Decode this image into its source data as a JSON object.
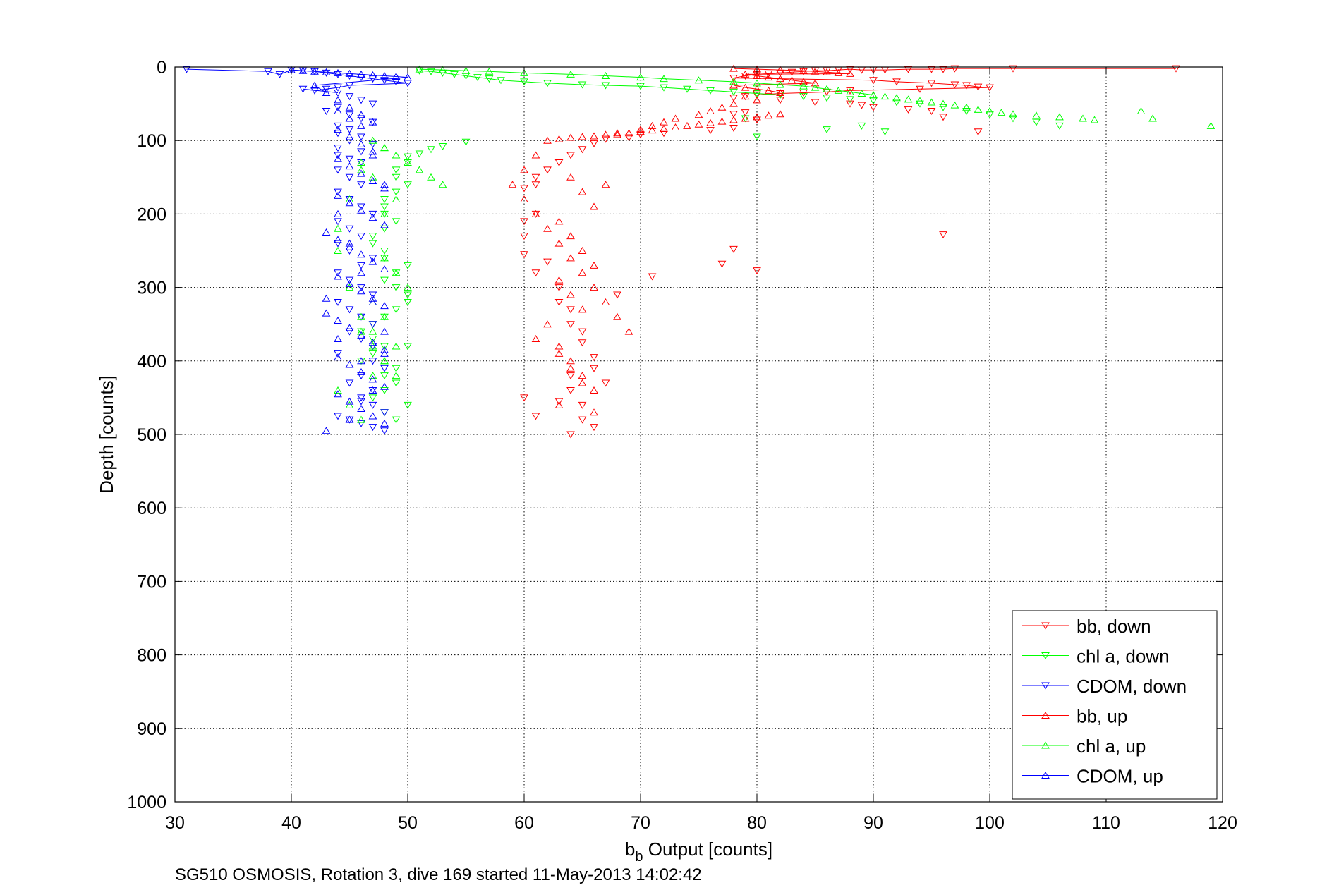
{
  "chart_data": {
    "type": "scatter",
    "xlabel_main": "b",
    "xlabel_sub": "b",
    "xlabel_rest": " Output [counts]",
    "ylabel": "Depth [counts]",
    "caption": "SG510 OSMOSIS, Rotation 3, dive 169 started 11-May-2013 14:02:42",
    "xlim": [
      30,
      120
    ],
    "ylim": [
      0,
      1000
    ],
    "y_reversed": true,
    "grid": true,
    "legend_position": "lower-right",
    "xticks": [
      30,
      40,
      50,
      60,
      70,
      80,
      90,
      100,
      110,
      120
    ],
    "yticks": [
      0,
      100,
      200,
      300,
      400,
      500,
      600,
      700,
      800,
      900,
      1000
    ],
    "series": [
      {
        "name": "bb, down",
        "color": "#ff0000",
        "marker": "triangle-down",
        "x": [
          116,
          102,
          97,
          96,
          95,
          93,
          91,
          90,
          89,
          88,
          87,
          86,
          85,
          84,
          83,
          82,
          81,
          80,
          79,
          78,
          90,
          92,
          95,
          97,
          98,
          99,
          100,
          94,
          88,
          86,
          84,
          82,
          80,
          79,
          78,
          82,
          85,
          88,
          89,
          90,
          93,
          95,
          96,
          99,
          78,
          79,
          80,
          78,
          76,
          72,
          70,
          71,
          69,
          67,
          66,
          65,
          64,
          63,
          62,
          61,
          61,
          60,
          61,
          60,
          60,
          60,
          62,
          61,
          63,
          63,
          64,
          64,
          65,
          65,
          66,
          66,
          67,
          64,
          63,
          61,
          60,
          65,
          66,
          64,
          65,
          64,
          78,
          77,
          80,
          96,
          68
        ],
        "y": [
          2,
          2,
          2,
          3,
          3,
          3,
          4,
          4,
          4,
          3,
          4,
          5,
          5,
          6,
          7,
          8,
          9,
          10,
          12,
          15,
          18,
          20,
          22,
          24,
          25,
          27,
          28,
          30,
          32,
          34,
          35,
          36,
          38,
          40,
          42,
          45,
          48,
          50,
          52,
          55,
          58,
          60,
          68,
          88,
          64,
          62,
          72,
          83,
          86,
          90,
          92,
          285,
          96,
          98,
          104,
          112,
          120,
          130,
          140,
          150,
          160,
          165,
          200,
          210,
          230,
          255,
          265,
          280,
          300,
          320,
          330,
          350,
          360,
          375,
          395,
          410,
          430,
          440,
          455,
          475,
          450,
          480,
          490,
          500,
          460,
          420,
          248,
          268,
          277,
          228,
          310
        ]
      },
      {
        "name": "chl a, down",
        "color": "#00ff00",
        "marker": "triangle-down",
        "x": [
          51,
          52,
          53,
          54,
          55,
          56,
          57,
          58,
          60,
          62,
          65,
          67,
          70,
          72,
          74,
          76,
          78,
          80,
          82,
          84,
          86,
          88,
          90,
          92,
          94,
          96,
          98,
          100,
          102,
          104,
          106,
          80,
          79,
          86,
          89,
          91,
          55,
          53,
          52,
          51,
          50,
          50,
          49,
          49,
          50,
          49,
          48,
          48,
          48,
          49,
          48,
          47,
          47,
          48,
          48,
          50,
          49,
          48,
          49,
          50,
          50,
          49,
          48,
          47,
          46,
          47,
          48,
          47,
          46,
          49,
          48,
          49,
          48,
          47,
          50,
          48,
          49,
          50
        ],
        "y": [
          5,
          6,
          8,
          10,
          12,
          14,
          16,
          18,
          20,
          22,
          24,
          25,
          26,
          28,
          30,
          32,
          34,
          36,
          38,
          40,
          42,
          44,
          46,
          48,
          50,
          55,
          60,
          65,
          70,
          75,
          80,
          95,
          70,
          85,
          80,
          88,
          102,
          108,
          112,
          118,
          122,
          130,
          140,
          150,
          160,
          170,
          180,
          190,
          200,
          210,
          220,
          230,
          240,
          250,
          260,
          270,
          280,
          290,
          300,
          310,
          320,
          330,
          340,
          350,
          360,
          370,
          380,
          390,
          400,
          410,
          420,
          430,
          440,
          450,
          460,
          470,
          480,
          380
        ]
      },
      {
        "name": "CDOM, down",
        "color": "#0000ff",
        "marker": "triangle-down",
        "x": [
          31,
          38,
          39,
          40,
          41,
          42,
          43,
          44,
          45,
          46,
          47,
          48,
          49,
          50,
          45,
          44,
          43,
          42,
          41,
          44,
          45,
          46,
          47,
          44,
          43,
          45,
          46,
          47,
          44,
          45,
          44,
          46,
          45,
          47,
          44,
          46,
          44,
          45,
          46,
          44,
          45,
          46,
          44,
          45,
          46,
          47,
          44,
          45,
          46,
          44,
          45,
          47,
          46,
          44,
          45,
          46,
          47,
          44,
          45,
          46,
          47,
          45,
          46,
          47,
          44,
          47,
          48,
          46,
          45,
          47,
          46,
          47,
          48,
          44,
          45,
          46,
          47,
          48,
          46
        ],
        "y": [
          3,
          6,
          10,
          4,
          5,
          6,
          8,
          10,
          12,
          14,
          16,
          18,
          20,
          22,
          25,
          28,
          30,
          32,
          30,
          35,
          40,
          45,
          50,
          55,
          60,
          65,
          70,
          75,
          80,
          85,
          90,
          95,
          100,
          105,
          110,
          115,
          120,
          125,
          130,
          140,
          150,
          160,
          170,
          180,
          190,
          200,
          210,
          220,
          230,
          240,
          250,
          260,
          270,
          280,
          290,
          300,
          310,
          320,
          330,
          340,
          350,
          360,
          370,
          380,
          390,
          400,
          410,
          420,
          430,
          440,
          450,
          460,
          470,
          475,
          480,
          485,
          490,
          495,
          455
        ]
      },
      {
        "name": "bb, up",
        "color": "#ff0000",
        "marker": "triangle-up",
        "x": [
          78,
          80,
          82,
          84,
          85,
          86,
          87,
          88,
          79,
          80,
          81,
          82,
          83,
          84,
          85,
          78,
          79,
          80,
          81,
          82,
          79,
          80,
          78,
          77,
          76,
          75,
          73,
          72,
          71,
          70,
          68,
          67,
          66,
          65,
          64,
          63,
          62,
          61,
          60,
          59,
          60,
          61,
          62,
          63,
          64,
          65,
          66,
          67,
          68,
          69,
          63,
          64,
          65,
          66,
          63,
          64,
          65,
          66,
          63,
          64,
          65,
          66,
          63,
          64,
          65,
          62,
          61,
          63,
          64,
          65,
          66,
          67,
          68,
          69,
          70,
          71,
          72,
          73,
          74,
          75,
          76,
          77,
          78,
          79,
          80,
          81,
          82
        ],
        "y": [
          2,
          3,
          4,
          5,
          6,
          7,
          8,
          9,
          10,
          12,
          14,
          16,
          18,
          20,
          22,
          25,
          28,
          30,
          32,
          35,
          40,
          45,
          50,
          55,
          60,
          65,
          70,
          75,
          80,
          85,
          90,
          92,
          94,
          95,
          96,
          98,
          100,
          120,
          140,
          160,
          180,
          200,
          220,
          240,
          260,
          280,
          300,
          320,
          340,
          360,
          380,
          400,
          420,
          440,
          460,
          150,
          170,
          190,
          210,
          230,
          250,
          270,
          290,
          310,
          330,
          350,
          370,
          390,
          410,
          430,
          470,
          160,
          92,
          90,
          88,
          86,
          84,
          82,
          80,
          78,
          76,
          74,
          72,
          70,
          68,
          66,
          64
        ]
      },
      {
        "name": "chl a, up",
        "color": "#00ff00",
        "marker": "triangle-up",
        "x": [
          51,
          53,
          55,
          57,
          60,
          64,
          67,
          70,
          72,
          75,
          78,
          80,
          82,
          84,
          85,
          86,
          87,
          88,
          89,
          90,
          91,
          92,
          93,
          94,
          95,
          96,
          97,
          98,
          99,
          100,
          101,
          102,
          104,
          106,
          108,
          109,
          113,
          114,
          119,
          53,
          52,
          51,
          50,
          49,
          48,
          47,
          46,
          45,
          44,
          48,
          49,
          50,
          47,
          48,
          46,
          47,
          48,
          49,
          44,
          45,
          46,
          47,
          48,
          49,
          47,
          46,
          45,
          44,
          48,
          49,
          47,
          46,
          48
        ],
        "y": [
          3,
          4,
          5,
          6,
          8,
          10,
          12,
          14,
          16,
          18,
          20,
          22,
          24,
          26,
          28,
          30,
          32,
          34,
          36,
          38,
          40,
          42,
          44,
          46,
          48,
          50,
          52,
          55,
          58,
          60,
          62,
          64,
          66,
          68,
          70,
          72,
          60,
          70,
          80,
          160,
          150,
          140,
          130,
          120,
          110,
          100,
          140,
          180,
          220,
          260,
          280,
          300,
          320,
          340,
          360,
          380,
          400,
          420,
          440,
          460,
          480,
          420,
          400,
          380,
          360,
          340,
          300,
          250,
          200,
          180,
          150,
          130,
          110
        ]
      },
      {
        "name": "CDOM, up",
        "color": "#0000ff",
        "marker": "triangle-up",
        "x": [
          40,
          41,
          42,
          43,
          44,
          45,
          46,
          47,
          48,
          49,
          50,
          42,
          43,
          44,
          45,
          46,
          47,
          44,
          45,
          46,
          47,
          44,
          45,
          46,
          47,
          48,
          44,
          45,
          46,
          47,
          48,
          43,
          44,
          45,
          46,
          47,
          48,
          44,
          45,
          46,
          47,
          48,
          43,
          44,
          45,
          46,
          47,
          48,
          44,
          45,
          46,
          47,
          48,
          44,
          45,
          46,
          47,
          48,
          43,
          44,
          45,
          46,
          47,
          48,
          44,
          45,
          46,
          47,
          48,
          46,
          47,
          45,
          48,
          43,
          44
        ],
        "y": [
          4,
          5,
          6,
          7,
          8,
          9,
          10,
          11,
          12,
          13,
          14,
          25,
          35,
          45,
          55,
          65,
          75,
          85,
          95,
          105,
          115,
          125,
          135,
          145,
          155,
          165,
          175,
          185,
          195,
          205,
          215,
          225,
          235,
          245,
          255,
          265,
          275,
          285,
          295,
          305,
          315,
          325,
          335,
          345,
          355,
          365,
          375,
          385,
          395,
          405,
          415,
          425,
          435,
          445,
          455,
          465,
          475,
          485,
          495,
          60,
          70,
          80,
          120,
          160,
          200,
          240,
          280,
          320,
          360,
          400,
          440,
          480,
          390,
          315,
          370
        ]
      }
    ]
  }
}
